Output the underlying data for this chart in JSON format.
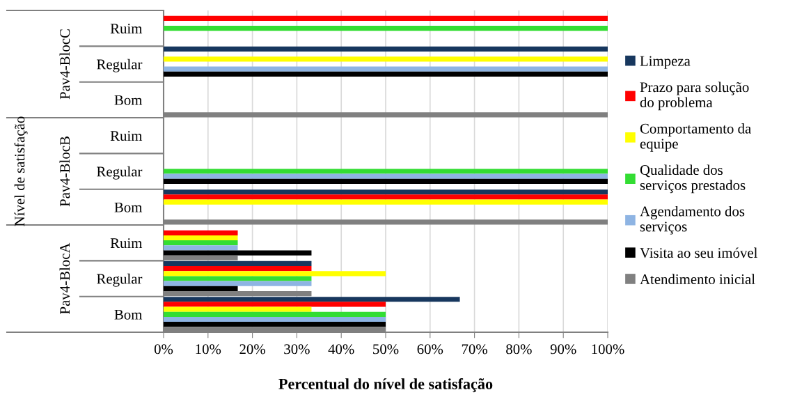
{
  "chart_data": {
    "type": "bar",
    "orientation": "horizontal",
    "xlabel": "Percentual do nível de satisfação",
    "ylabel": "Nível de satisfação",
    "categories": [
      "Ruim",
      "Regular",
      "Bom",
      "Ruim",
      "Regular",
      "Bom",
      "Ruim",
      "Regular",
      "Bom"
    ],
    "annotations": [
      "Pav4-BlocC",
      "Pav4-BlocB",
      "Pav4-BlocA"
    ],
    "series": [
      {
        "name": "Limpeza",
        "color": "#17375e",
        "values": [
          0,
          100,
          0,
          0,
          0,
          100,
          0,
          33.3,
          66.7
        ]
      },
      {
        "name": "Prazo para solução do problema",
        "color": "#ff0000",
        "values": [
          100,
          0,
          0,
          0,
          0,
          100,
          16.7,
          33.3,
          50
        ]
      },
      {
        "name": "Comportamento da equipe",
        "color": "#ffff00",
        "values": [
          0,
          100,
          0,
          0,
          0,
          100,
          16.7,
          50,
          33.3
        ]
      },
      {
        "name": "Qualidade dos serviços prestados",
        "color": "#33dd33",
        "values": [
          100,
          0,
          0,
          0,
          100,
          0,
          16.7,
          33.3,
          50
        ]
      },
      {
        "name": "Agendamento dos serviços",
        "color": "#8eb4e3",
        "values": [
          0,
          100,
          0,
          0,
          100,
          0,
          16.7,
          33.3,
          50
        ]
      },
      {
        "name": "Visita ao seu imóvel",
        "color": "#000000",
        "values": [
          0,
          100,
          0,
          0,
          100,
          0,
          33.3,
          16.7,
          50
        ]
      },
      {
        "name": "Atendimento inicial",
        "color": "#808080",
        "values": [
          0,
          0,
          100,
          0,
          0,
          100,
          16.7,
          33.3,
          50
        ]
      }
    ],
    "xlim": [
      0,
      100
    ],
    "xticks": [
      {
        "value": 0,
        "label": "0%"
      },
      {
        "value": 10,
        "label": "10%"
      },
      {
        "value": 20,
        "label": "20%"
      },
      {
        "value": 30,
        "label": "30%"
      },
      {
        "value": 40,
        "label": "40%"
      },
      {
        "value": 50,
        "label": "50%"
      },
      {
        "value": 60,
        "label": "60%"
      },
      {
        "value": 70,
        "label": "70%"
      },
      {
        "value": 80,
        "label": "80%"
      },
      {
        "value": 90,
        "label": "90%"
      },
      {
        "value": 100,
        "label": "100%"
      }
    ],
    "grid": "x",
    "legend": "right"
  }
}
